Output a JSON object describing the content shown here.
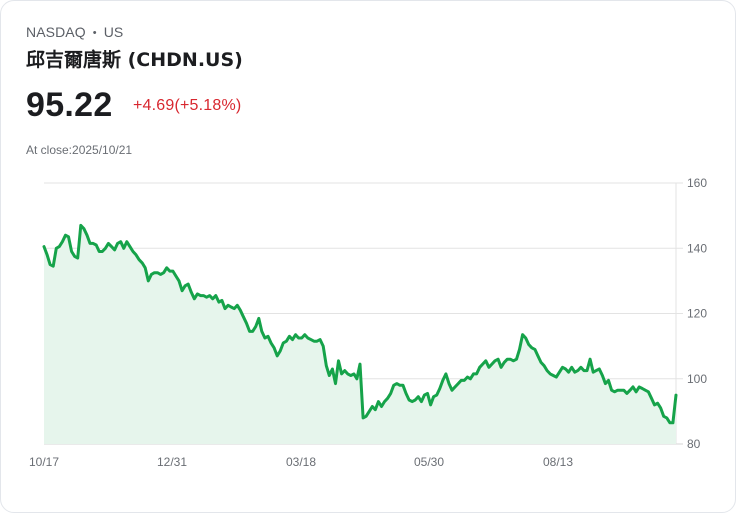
{
  "header": {
    "exchange": "NASDAQ",
    "separator": "•",
    "market": "US",
    "title": "邱吉爾唐斯 (CHDN.US)",
    "price": "95.22",
    "change": "+4.69(+5.18%)",
    "close_label": "At close:2025/10/21"
  },
  "colors": {
    "line": "#16a34a",
    "area": "#e6f5ec",
    "change_positive": "#d8272f",
    "grid": "#e3e3e3"
  },
  "chart_data": {
    "type": "area",
    "title": "邱吉爾唐斯 (CHDN.US)",
    "xlabel": "",
    "ylabel": "",
    "ylim": [
      80,
      160
    ],
    "yticks": [
      80,
      100,
      120,
      140,
      160
    ],
    "xticks": [
      "10/17",
      "12/31",
      "03/18",
      "05/30",
      "08/13"
    ],
    "grid": true,
    "y_axis_position": "right",
    "series": [
      {
        "name": "CHDN.US",
        "values": [
          140.5,
          138,
          135,
          134.5,
          140,
          140.5,
          142,
          144,
          143.5,
          139,
          137.5,
          137,
          147,
          146,
          144,
          141.5,
          141.5,
          141,
          139,
          139,
          140,
          141.5,
          140.5,
          139.5,
          141.5,
          142,
          140,
          142,
          140.5,
          139,
          138,
          136.5,
          135.5,
          134,
          130,
          132,
          132.5,
          132.5,
          132,
          132.5,
          134,
          133,
          133,
          131.5,
          130,
          127,
          128.5,
          129,
          126.5,
          124.5,
          126,
          125.5,
          125.5,
          125,
          125.5,
          124.5,
          125.5,
          123.5,
          124,
          121.5,
          122.5,
          122,
          121.5,
          122.5,
          121,
          119,
          117,
          114.5,
          114.5,
          116,
          118.5,
          114.5,
          112.5,
          113,
          111,
          109.5,
          107,
          108.5,
          111,
          111.5,
          113,
          112,
          113.5,
          112.5,
          112.5,
          113.5,
          112.5,
          112,
          111.5,
          111.5,
          112,
          110,
          104,
          101,
          103,
          98.5,
          105.5,
          101.5,
          102.5,
          101.5,
          101,
          101.5,
          100,
          104.5,
          88,
          88.5,
          90,
          91.5,
          90.5,
          93,
          91.5,
          93,
          94,
          95.5,
          98,
          98.5,
          98,
          98,
          95.5,
          93.5,
          93,
          93.5,
          94.5,
          93,
          95,
          95.5,
          92,
          94.5,
          95,
          97,
          99.5,
          101.5,
          98.5,
          96.5,
          97.5,
          98.5,
          99.5,
          99.5,
          100.5,
          100,
          101.5,
          101.5,
          103.5,
          104.5,
          105.5,
          103.5,
          104.5,
          105.5,
          106,
          103.5,
          105,
          106,
          106,
          105.5,
          106,
          109,
          113.5,
          112.5,
          110.5,
          109.5,
          109,
          107,
          105,
          104,
          102.5,
          101.5,
          101,
          100.5,
          102,
          103.5,
          103,
          102,
          103.5,
          102,
          102.5,
          103.5,
          102.5,
          102.5,
          106,
          102,
          102.5,
          103,
          101,
          98.5,
          99.5,
          96.5,
          96,
          96.5,
          96.5,
          96.5,
          95.5,
          96.5,
          97.5,
          96,
          97.5,
          97,
          96.5,
          96,
          94,
          92,
          92.5,
          91,
          88.5,
          88,
          86.5,
          86.5,
          95
        ]
      }
    ]
  }
}
